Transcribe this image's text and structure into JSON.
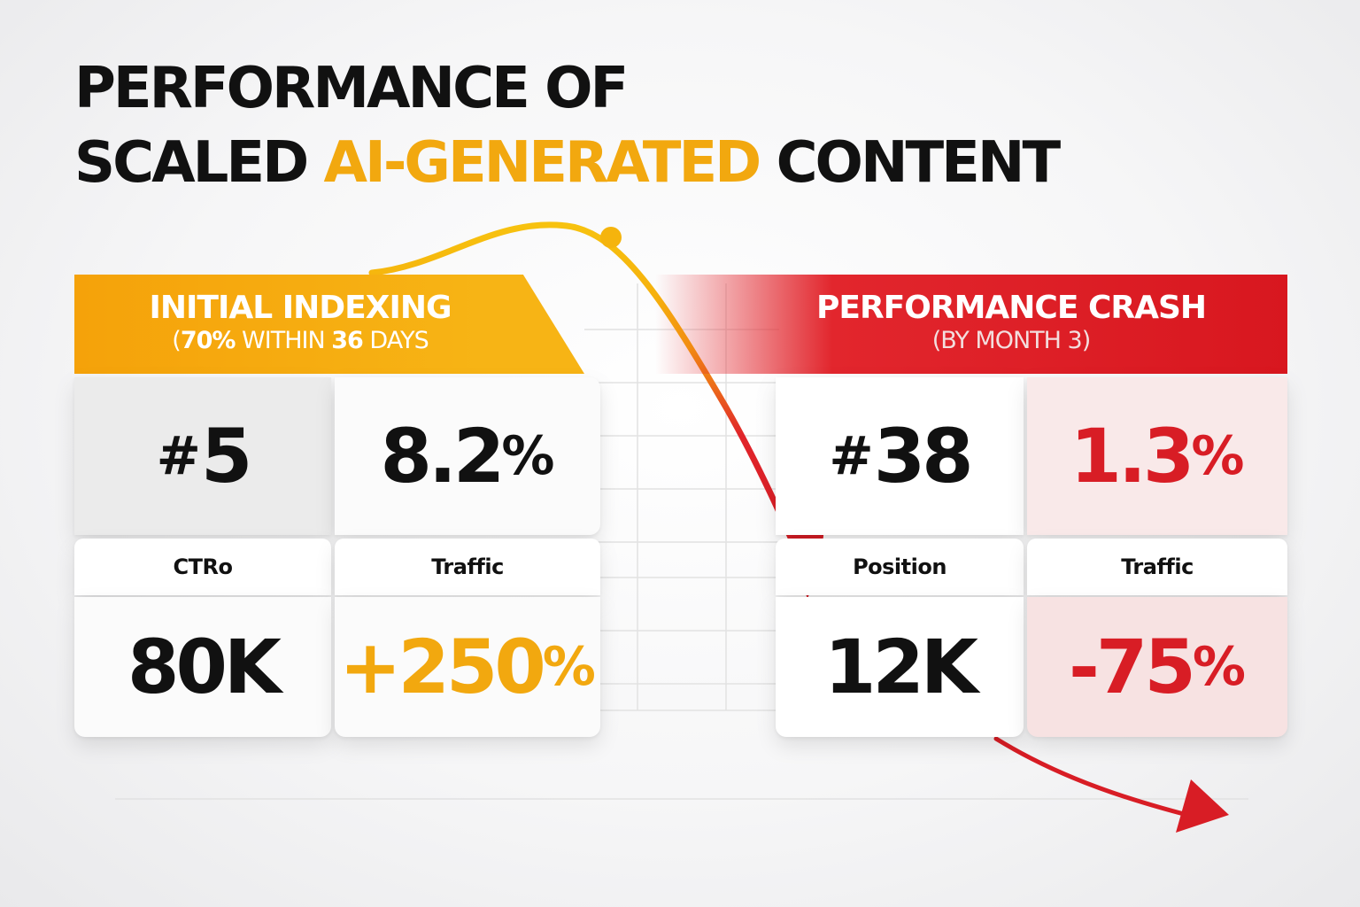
{
  "title": {
    "line1": "PERFORMANCE OF",
    "line2_prefix": "SCALED ",
    "line2_accent": "AI-GENERATED",
    "line2_suffix": " CONTENT"
  },
  "left_panel": {
    "heading": "INITIAL INDEXING",
    "sub_open": "(",
    "sub_pct": "70%",
    "sub_mid": " WITHIN ",
    "sub_days_num": "36",
    "sub_end": " DAYS",
    "position_prefix": "#",
    "position_value": "5",
    "ctr_value": "8.2",
    "ctr_unit": "%",
    "label_1": "CTRo",
    "label_2": "Traffic",
    "traffic_value": "80K",
    "change_value": "+250",
    "change_unit": "%"
  },
  "right_panel": {
    "heading": "PERFORMANCE CRASH",
    "sub": "(BY MONTH 3)",
    "position_prefix": "#",
    "position_value": "38",
    "ctr_value": "1.3",
    "ctr_unit": "%",
    "label_1": "Position",
    "label_2": "Traffic",
    "traffic_value": "12K",
    "change_value": "-75",
    "change_unit": "%"
  },
  "colors": {
    "accent_orange": "#f2a80f",
    "accent_red": "#d81d25"
  }
}
